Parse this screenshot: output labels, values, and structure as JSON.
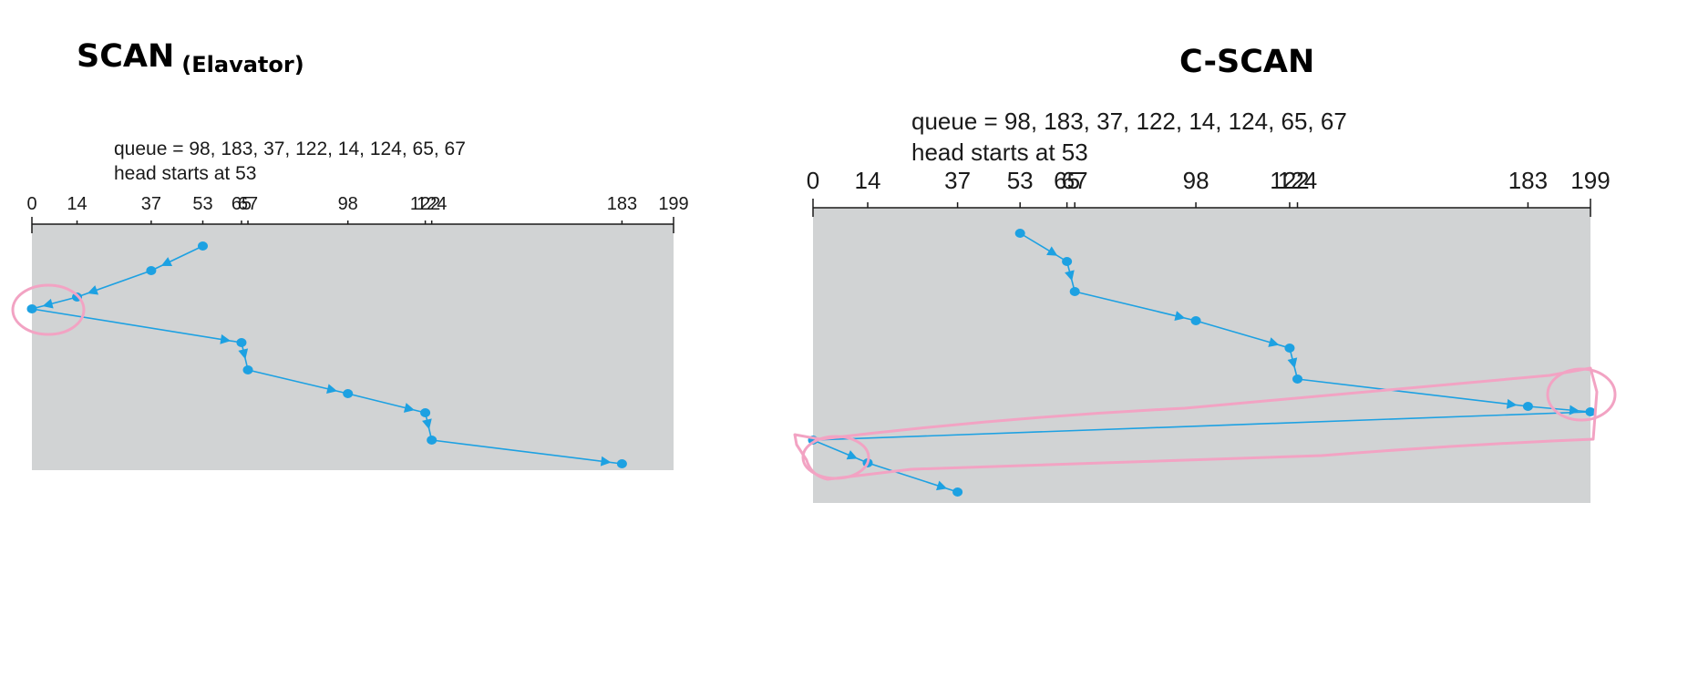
{
  "diagrams": [
    {
      "id": "scan",
      "title": "SCAN",
      "subtitle": "(Elavator)",
      "queue_text": "queue = 98, 183, 37, 122, 14, 124, 65, 67",
      "head_text": "head starts at 53",
      "ticks": [
        0,
        14,
        37,
        53,
        65,
        67,
        98,
        122,
        124,
        183,
        199
      ],
      "tick_labels": [
        "0",
        "14",
        "37",
        "53",
        "65",
        "67",
        "98",
        "122",
        "124",
        "183",
        "199"
      ],
      "sequence": [
        53,
        37,
        14,
        0,
        65,
        67,
        98,
        122,
        124,
        183
      ],
      "highlight_circles": [
        "around-0-14"
      ]
    },
    {
      "id": "cscan",
      "title": "C-SCAN",
      "queue_text": "queue = 98, 183, 37, 122, 14, 124, 65, 67",
      "head_text": "head starts at 53",
      "ticks": [
        0,
        14,
        37,
        53,
        65,
        67,
        98,
        122,
        124,
        183,
        199
      ],
      "tick_labels": [
        "0",
        "14",
        "37",
        "53",
        "65",
        "67",
        "98",
        "122",
        "124",
        "183",
        "199"
      ],
      "sequence": [
        53,
        65,
        67,
        98,
        122,
        124,
        183,
        199,
        0,
        14,
        37
      ],
      "highlight_circles": [
        "around-199",
        "around-0-14"
      ],
      "highlight_loop": "wrap-around-return"
    }
  ],
  "colors": {
    "plot_bg": "#d1d3d4",
    "path": "#1da1e2",
    "axis": "#1a1a1a",
    "highlight": "#f2a3c3"
  }
}
